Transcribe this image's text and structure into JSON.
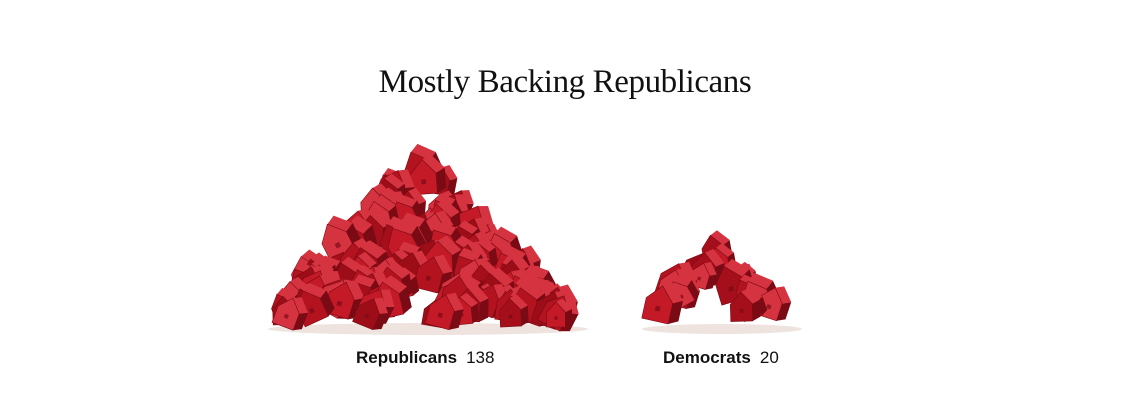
{
  "chart_data": {
    "type": "pictograph",
    "title": "Mostly Backing Republicans",
    "categories": [
      "Republicans",
      "Democrats"
    ],
    "values": [
      138,
      20
    ],
    "colors": {
      "house_base": "#b3121f",
      "house_dark": "#7a0a14",
      "house_light": "#d63340",
      "shadow": "#e8dcd8"
    },
    "icon": "house-icon"
  }
}
